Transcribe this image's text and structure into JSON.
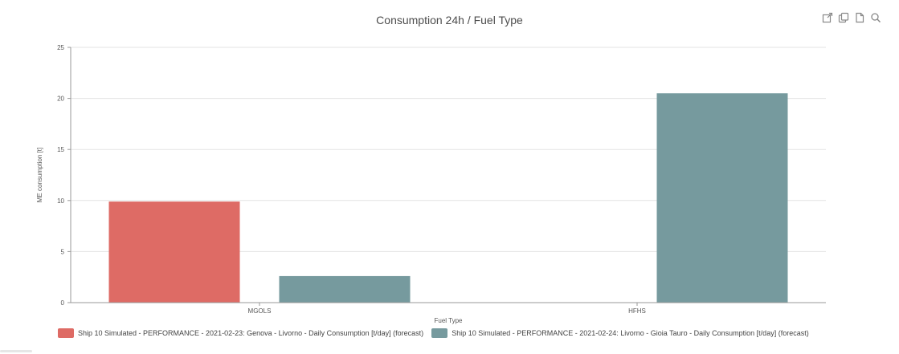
{
  "title": "Consumption 24h / Fuel Type",
  "toolbar": [
    {
      "icon": "open-external-icon"
    },
    {
      "icon": "copy-icon"
    },
    {
      "icon": "document-icon"
    },
    {
      "icon": "search-icon"
    }
  ],
  "chart_data": {
    "type": "bar",
    "title": "Consumption 24h / Fuel Type",
    "xlabel": "Fuel Type",
    "ylabel": "ME consumption [t]",
    "categories": [
      "MGOLS",
      "HFHS"
    ],
    "ylim": [
      0,
      25
    ],
    "yticks": [
      0,
      5,
      10,
      15,
      20,
      25
    ],
    "grid": true,
    "legend_position": "bottom",
    "series": [
      {
        "name": "Ship 10 Simulated - PERFORMANCE - 2021-02-23: Genova - Livorno - Daily Consumption [t/day] (forecast)",
        "color": "#de6b65",
        "values": [
          9.9,
          null
        ]
      },
      {
        "name": "Ship 10 Simulated - PERFORMANCE - 2021-02-24: Livorno - Gioia Tauro - Daily Consumption [t/day] (forecast)",
        "color": "#769a9e",
        "values": [
          2.6,
          20.5
        ]
      }
    ]
  }
}
